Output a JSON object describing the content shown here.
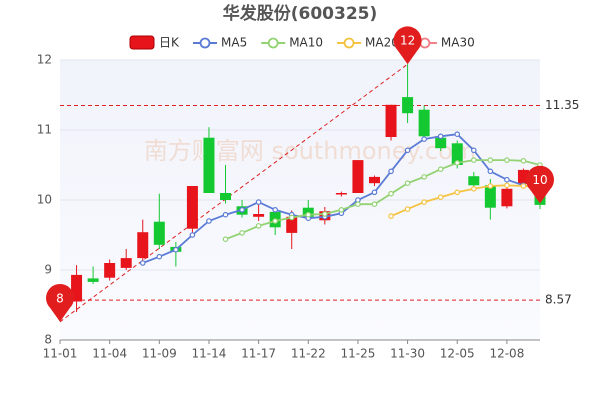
{
  "chart_data": {
    "type": "candlestick",
    "title": "华发股份(600325)",
    "watermark": "南方财富网 southmoney.com",
    "categories": [
      "11-01",
      null,
      null,
      "11-04",
      null,
      null,
      "11-09",
      null,
      null,
      "11-14",
      null,
      null,
      "11-17",
      null,
      null,
      "11-22",
      null,
      null,
      "11-25",
      null,
      null,
      "11-30",
      null,
      null,
      "12-05",
      null,
      null,
      "12-08",
      null,
      null
    ],
    "candle": {
      "name": "日K",
      "up_color": "#e8141b",
      "down_color": "#14c832",
      "open": [
        null,
        8.55,
        8.88,
        8.89,
        9.03,
        9.17,
        9.69,
        9.33,
        9.59,
        10.89,
        10.1,
        9.91,
        9.76,
        9.83,
        9.53,
        9.89,
        9.71,
        10.08,
        10.1,
        10.24,
        10.9,
        11.47,
        11.29,
        10.89,
        10.81,
        10.34,
        10.21,
        9.91,
        10.23,
        10.1
      ],
      "high": [
        null,
        9.07,
        9.05,
        9.15,
        9.3,
        9.72,
        10.09,
        9.4,
        10.2,
        11.04,
        10.5,
        10.0,
        9.95,
        9.85,
        9.85,
        10.0,
        9.9,
        10.12,
        10.57,
        10.35,
        11.36,
        11.94,
        11.35,
        10.95,
        10.85,
        10.4,
        10.3,
        10.18,
        10.45,
        10.13
      ],
      "low": [
        null,
        8.4,
        8.8,
        8.85,
        9.0,
        9.12,
        9.3,
        9.05,
        9.5,
        10.1,
        9.95,
        9.75,
        9.7,
        9.5,
        9.3,
        9.7,
        9.65,
        10.05,
        10.1,
        10.2,
        10.85,
        11.1,
        10.85,
        10.7,
        10.45,
        10.15,
        9.72,
        9.88,
        10.2,
        9.87
      ],
      "close": [
        null,
        8.93,
        8.83,
        9.1,
        9.17,
        9.54,
        9.36,
        9.26,
        10.2,
        10.1,
        10.0,
        9.79,
        9.8,
        9.61,
        9.76,
        9.76,
        9.84,
        10.1,
        10.57,
        10.33,
        11.36,
        11.24,
        10.91,
        10.74,
        10.5,
        10.21,
        9.89,
        10.16,
        10.43,
        9.93
      ]
    },
    "series": [
      {
        "name": "MA5",
        "color": "#5b7bd5",
        "values": [
          null,
          null,
          null,
          null,
          null,
          9.1,
          9.19,
          9.29,
          9.5,
          9.7,
          9.79,
          9.86,
          9.97,
          9.86,
          9.79,
          9.74,
          9.76,
          9.81,
          10.0,
          10.11,
          10.41,
          10.71,
          10.87,
          10.91,
          10.94,
          10.71,
          10.41,
          10.29,
          10.21,
          10.16
        ]
      },
      {
        "name": "MA10",
        "color": "#93d273",
        "values": [
          null,
          null,
          null,
          null,
          null,
          null,
          null,
          null,
          null,
          null,
          9.44,
          9.53,
          9.63,
          9.7,
          9.75,
          9.79,
          9.8,
          9.86,
          9.94,
          9.94,
          10.09,
          10.24,
          10.33,
          10.44,
          10.53,
          10.57,
          10.57,
          10.57,
          10.56,
          10.5
        ]
      },
      {
        "name": "MA20",
        "color": "#f5c342",
        "values": [
          null,
          null,
          null,
          null,
          null,
          null,
          null,
          null,
          null,
          null,
          null,
          null,
          null,
          null,
          null,
          null,
          null,
          null,
          null,
          null,
          9.77,
          9.87,
          9.97,
          10.04,
          10.11,
          10.16,
          10.2,
          10.21,
          10.2,
          10.19
        ]
      },
      {
        "name": "MA30",
        "color": "#ee7f86",
        "values": [
          null,
          null,
          null,
          null,
          null,
          null,
          null,
          null,
          null,
          null,
          null,
          null,
          null,
          null,
          null,
          null,
          null,
          null,
          null,
          null,
          null,
          null,
          null,
          null,
          null,
          null,
          null,
          null,
          null,
          null
        ]
      }
    ],
    "ylim": [
      8,
      12
    ],
    "yticks": [
      8,
      9,
      10,
      11,
      12
    ],
    "grid": true,
    "reference_lines": [
      {
        "value": 11.35,
        "label": "11.35"
      },
      {
        "value": 8.57,
        "label": "8.57"
      }
    ],
    "pins": [
      {
        "index": 21,
        "value": 11.94,
        "label": "12"
      },
      {
        "index": 0,
        "value": 8.26,
        "label": "8"
      },
      {
        "index": 29,
        "value": 9.95,
        "label": "10"
      }
    ]
  }
}
